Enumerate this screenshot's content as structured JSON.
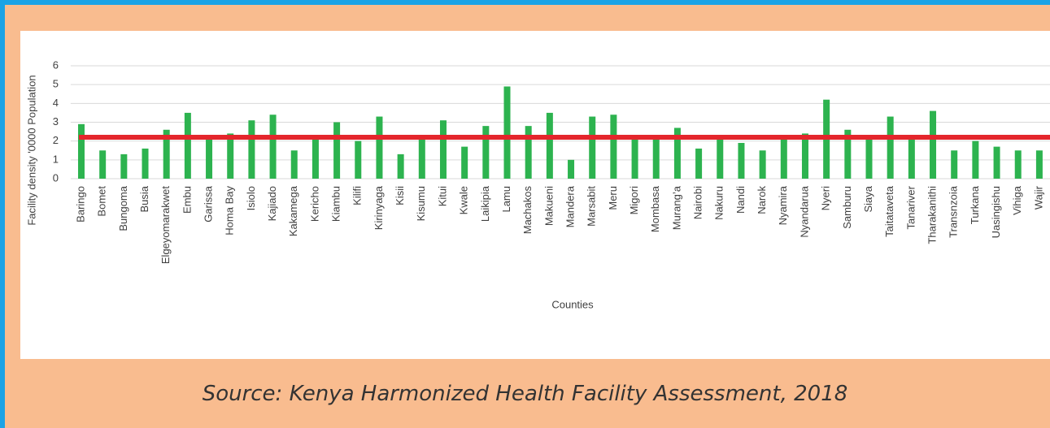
{
  "chart_data": {
    "type": "bar",
    "y_axis_label": "Facility density '0000 Population",
    "x_axis_label": "Counties",
    "source": "Source: Kenya Harmonized Health Facility Assessment, 2018",
    "categories": [
      "Baringo",
      "Bomet",
      "Bungoma",
      "Busia",
      "Elgeyomarakwet",
      "Embu",
      "Garissa",
      "Homa Bay",
      "Isiolo",
      "Kajiado",
      "Kakamega",
      "Kericho",
      "Kiambu",
      "Kilifi",
      "Kirinyaga",
      "Kisii",
      "Kisumu",
      "Kitui",
      "Kwale",
      "Laikipia",
      "Lamu",
      "Machakos",
      "Makueni",
      "Mandera",
      "Marsabit",
      "Meru",
      "Migori",
      "Mombasa",
      "Murang’a",
      "Nairobi",
      "Nakuru",
      "Nandi",
      "Narok",
      "Nyamira",
      "Nyandarua",
      "Nyeri",
      "Samburu",
      "Siaya",
      "Taitataveta",
      "Tanariver",
      "Tharakanithi",
      "Transnzoia",
      "Turkana",
      "Uasingishu",
      "Vihiga",
      "Wajir"
    ],
    "values": [
      2.9,
      1.5,
      1.3,
      1.6,
      2.6,
      3.5,
      2.2,
      2.4,
      3.1,
      3.4,
      1.5,
      2.1,
      3.0,
      2.0,
      3.3,
      1.3,
      2.2,
      3.1,
      1.7,
      2.8,
      4.9,
      2.8,
      3.5,
      1.0,
      3.3,
      3.4,
      2.2,
      2.2,
      2.7,
      1.6,
      2.2,
      1.9,
      1.5,
      2.2,
      2.4,
      4.2,
      2.6,
      2.2,
      3.3,
      2.2,
      3.6,
      1.5,
      2.0,
      1.7,
      1.5,
      1.5
    ],
    "color": "#2db34f",
    "reference_line": {
      "value": 2.2,
      "color": "#e4262c"
    },
    "ylim": [
      0,
      6
    ],
    "yticks": [
      0,
      1,
      2,
      3,
      4,
      5,
      6
    ],
    "grid": true
  }
}
